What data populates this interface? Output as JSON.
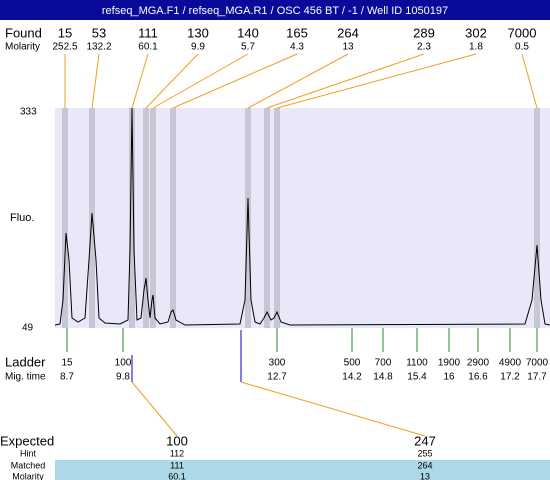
{
  "header": {
    "title": "refseq_MGA.F1 / refseq_MGA.R1 / OSC 456 BT / -1 / Well ID 1050197"
  },
  "found": {
    "label": "Found",
    "values": [
      15,
      53,
      111,
      130,
      140,
      165,
      264,
      289,
      302,
      7000
    ]
  },
  "found_molarity": {
    "label": "Molarity",
    "values": [
      252.5,
      132.2,
      60.1,
      9.9,
      5.7,
      4.3,
      13,
      2.3,
      1.8,
      0.5
    ]
  },
  "plot": {
    "y_label": "Fluo.",
    "y_top": 333,
    "y_bottom": 49
  },
  "ladder": {
    "label": "Ladder",
    "values": [
      15,
      100,
      300,
      500,
      700,
      1100,
      1900,
      2900,
      4900,
      7000
    ]
  },
  "mig_time": {
    "label": "Mig. time",
    "values": [
      8.7,
      9.8,
      12.7,
      14.2,
      14.8,
      15.4,
      16,
      16.6,
      17.2,
      17.7
    ]
  },
  "table": {
    "expected": {
      "label": "Expected",
      "values": [
        100,
        247
      ]
    },
    "hint": {
      "label": "Hint",
      "values": [
        112,
        255
      ]
    },
    "matched": {
      "label": "Matched",
      "values": [
        111,
        264
      ]
    },
    "molarity": {
      "label": "Molarity",
      "values": [
        60.1,
        13
      ]
    }
  }
}
